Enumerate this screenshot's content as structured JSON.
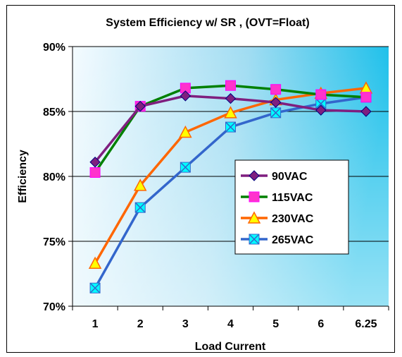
{
  "chart_data": {
    "type": "line",
    "title": "System Efficiency w/ SR , (OVT=Float)",
    "xlabel": "Load Current",
    "ylabel": "Efficiency",
    "categories": [
      "1",
      "2",
      "3",
      "4",
      "5",
      "6",
      "6.25"
    ],
    "y_ticks": [
      "70%",
      "75%",
      "80%",
      "85%",
      "90%"
    ],
    "ylim": [
      70,
      90
    ],
    "grid": "horizontal",
    "legend_position": "center-right",
    "series": [
      {
        "name": "90VAC",
        "color": "#7f1f7f",
        "marker": "diamond",
        "values": [
          81.1,
          85.4,
          86.2,
          86.0,
          85.7,
          85.1,
          85.0
        ]
      },
      {
        "name": "115VAC",
        "color": "#008000",
        "marker": "square",
        "values": [
          80.3,
          85.4,
          86.8,
          87.0,
          86.7,
          86.3,
          86.1
        ]
      },
      {
        "name": "230VAC",
        "color": "#ff6600",
        "marker": "triangle",
        "values": [
          73.3,
          79.3,
          83.4,
          84.9,
          85.9,
          86.4,
          86.8
        ]
      },
      {
        "name": "265VAC",
        "color": "#3366cc",
        "marker": "x-square",
        "values": [
          71.4,
          77.6,
          80.7,
          83.8,
          84.9,
          85.6,
          86.1
        ]
      }
    ]
  }
}
